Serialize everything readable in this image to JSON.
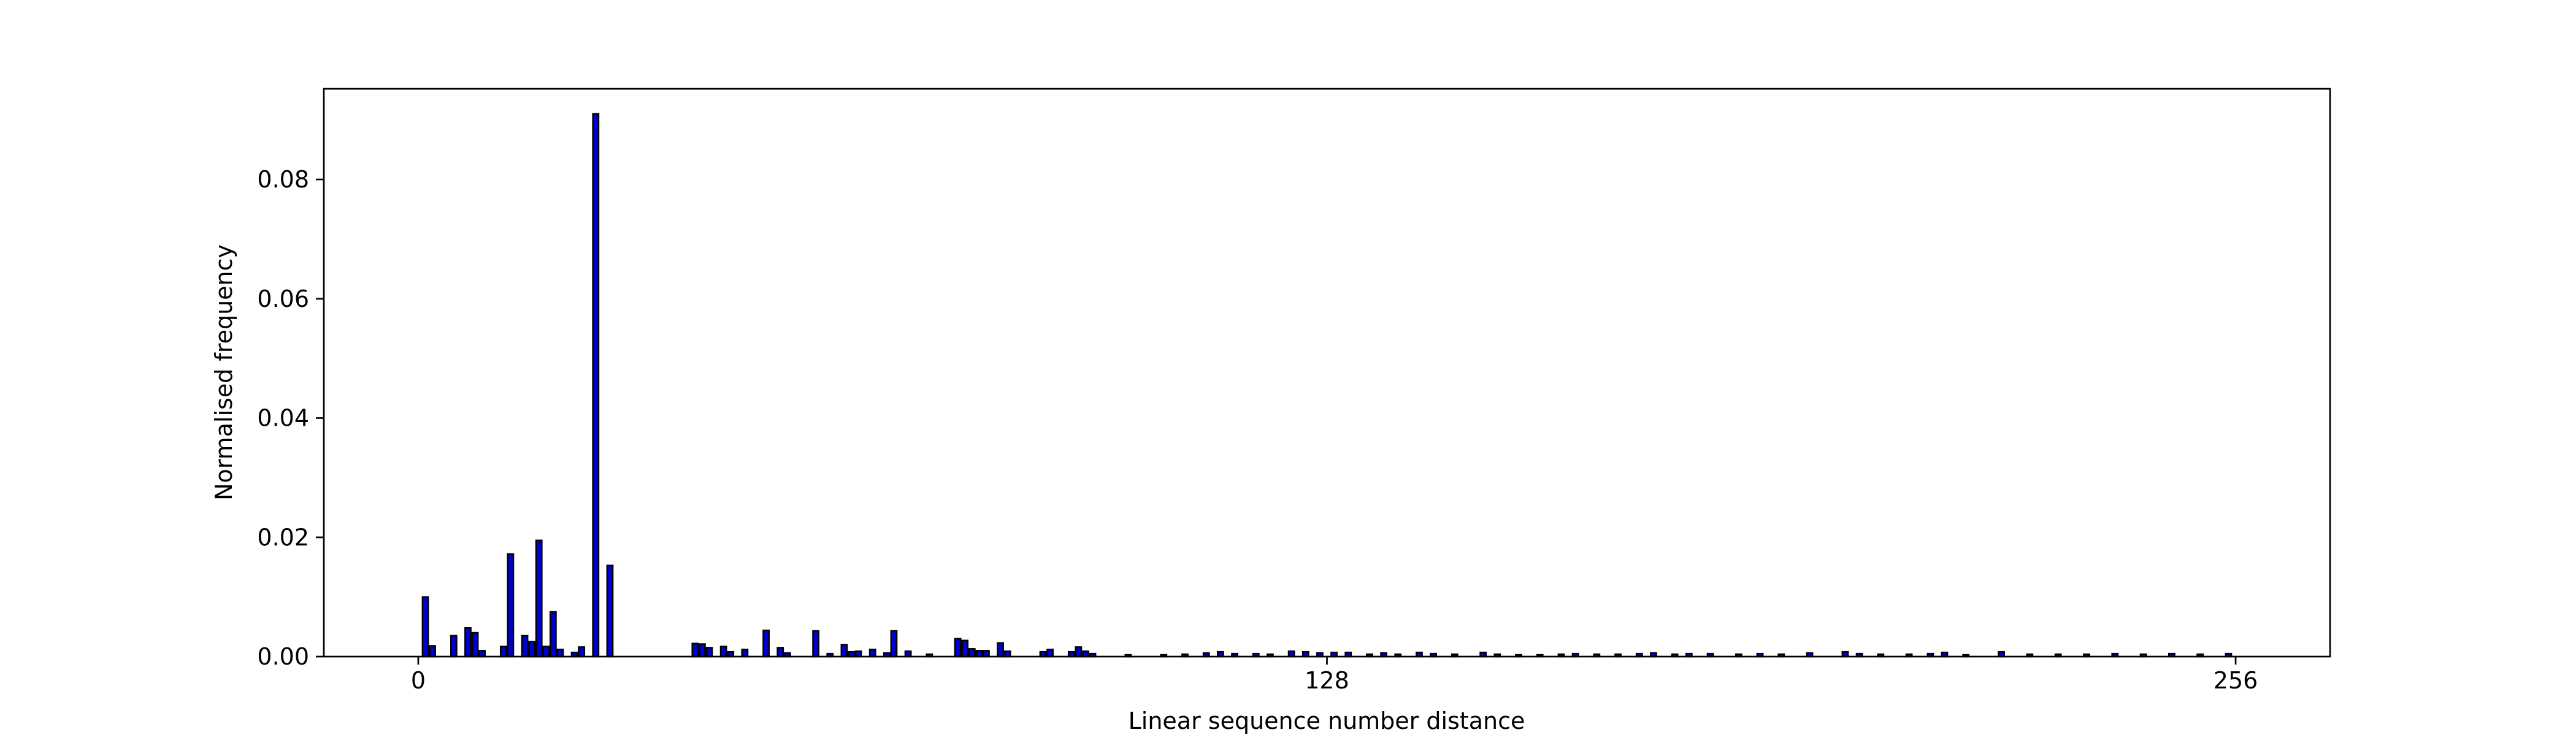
{
  "chart_data": {
    "type": "bar",
    "x_label": "Linear sequence number distance",
    "y_label": "Normalised frequency",
    "x": [
      1,
      2,
      5,
      7,
      8,
      9,
      12,
      13,
      15,
      16,
      17,
      18,
      19,
      20,
      22,
      23,
      25,
      27,
      39,
      40,
      41,
      43,
      44,
      46,
      49,
      51,
      52,
      56,
      58,
      60,
      61,
      62,
      64,
      66,
      67,
      69,
      72,
      76,
      77,
      78,
      79,
      80,
      82,
      83,
      88,
      89,
      92,
      93,
      94,
      95,
      100,
      105,
      108,
      111,
      113,
      115,
      118,
      120,
      123,
      125,
      127,
      129,
      131,
      134,
      136,
      138,
      141,
      143,
      146,
      150,
      152,
      155,
      158,
      161,
      163,
      166,
      169,
      172,
      174,
      177,
      179,
      182,
      186,
      189,
      192,
      196,
      201,
      203,
      206,
      210,
      213,
      215,
      218,
      223,
      227,
      231,
      235,
      239,
      243,
      247,
      251,
      255
    ],
    "values": [
      0.01,
      0.0018,
      0.0035,
      0.0048,
      0.004,
      0.001,
      0.0017,
      0.0172,
      0.0035,
      0.0025,
      0.0195,
      0.0017,
      0.0075,
      0.0012,
      0.0007,
      0.0016,
      0.091,
      0.0153,
      0.0022,
      0.0021,
      0.0015,
      0.0017,
      0.0008,
      0.0012,
      0.0044,
      0.0015,
      0.0006,
      0.0043,
      0.0005,
      0.002,
      0.0008,
      0.0009,
      0.0012,
      0.0006,
      0.0043,
      0.0009,
      0.0004,
      0.003,
      0.0027,
      0.0013,
      0.001,
      0.001,
      0.0023,
      0.0009,
      0.0008,
      0.0012,
      0.0008,
      0.0016,
      0.0009,
      0.0005,
      0.0003,
      0.0003,
      0.0004,
      0.0006,
      0.0008,
      0.0005,
      0.0005,
      0.0004,
      0.0009,
      0.0008,
      0.0006,
      0.0007,
      0.0007,
      0.0004,
      0.0006,
      0.0004,
      0.0007,
      0.0005,
      0.0004,
      0.0007,
      0.0004,
      0.0003,
      0.0003,
      0.0004,
      0.0005,
      0.0004,
      0.0004,
      0.0005,
      0.0006,
      0.0004,
      0.0005,
      0.0005,
      0.0004,
      0.0005,
      0.0004,
      0.0006,
      0.0008,
      0.0005,
      0.0004,
      0.0004,
      0.0005,
      0.0007,
      0.0003,
      0.0008,
      0.0004,
      0.0004,
      0.0004,
      0.0005,
      0.0004,
      0.0005,
      0.0004,
      0.0005
    ],
    "color": "#0000cd",
    "edgecolor": "#000000",
    "xlim": [
      -13.3,
      269.3
    ],
    "xticks": [
      0,
      128,
      256
    ],
    "ylim": [
      0,
      0.0952
    ],
    "yticks": [
      {
        "value": 0,
        "label": "0.00"
      },
      {
        "value": 0.02,
        "label": "0.02"
      },
      {
        "value": 0.04,
        "label": "0.04"
      },
      {
        "value": 0.06,
        "label": "0.06"
      },
      {
        "value": 0.08,
        "label": "0.08"
      }
    ],
    "grid": false
  }
}
